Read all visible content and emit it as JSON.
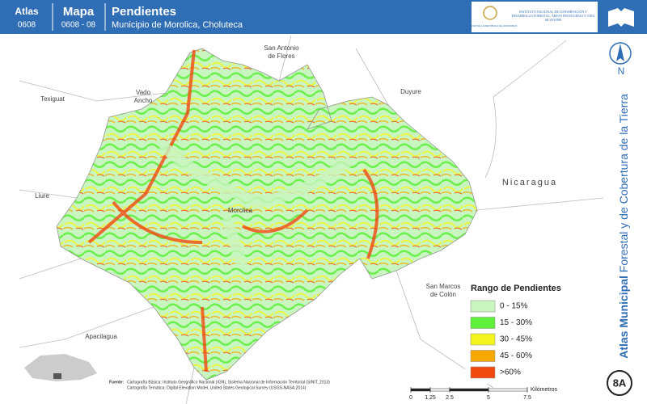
{
  "header": {
    "atlas_label": "Atlas",
    "atlas_code": "0608",
    "map_label": "Mapa",
    "map_code": "0608 - 08",
    "title": "Pendientes",
    "subtitle": "Municipio de Morolica, Choluteca"
  },
  "logos": {
    "left": "GOBIERNO DE LA REPÚBLICA DE HONDURAS",
    "right": "INSTITUTO NACIONAL DE CONSERVACIÓN Y DESARROLLO FORESTAL, ÁREAS PROTEGIDAS Y VIDA SILVESTRE"
  },
  "places": [
    {
      "lines": [
        "Texiguat"
      ]
    },
    {
      "lines": [
        "Vado",
        "Ancho"
      ]
    },
    {
      "lines": [
        "San Antonio",
        "de Flores"
      ]
    },
    {
      "lines": [
        "Duyure"
      ]
    },
    {
      "lines": [
        "Nicaragua"
      ]
    },
    {
      "lines": [
        "Liure"
      ]
    },
    {
      "lines": [
        "Morolica"
      ]
    },
    {
      "lines": [
        "San Marcos",
        "de Colón"
      ]
    },
    {
      "lines": [
        "Apacilagua"
      ]
    }
  ],
  "legend": {
    "title": "Rango de Pendientes",
    "items": [
      {
        "label": "0 - 15%",
        "color": "#c9f5c1"
      },
      {
        "label": "15 - 30%",
        "color": "#5ef03a"
      },
      {
        "label": "30 - 45%",
        "color": "#f5f51e"
      },
      {
        "label": "45 - 60%",
        "color": "#f7a800"
      },
      {
        "label": ">60%",
        "color": "#f04a10"
      }
    ]
  },
  "scale": {
    "ticks": [
      0,
      1.25,
      2.5,
      5,
      7.5
    ],
    "unit": "Kilómetros"
  },
  "source": {
    "label": "Fuente:",
    "lines": [
      "Cartografía Básica: Instituto Geográfico Nacional (IGN), Sistema Nacional de Información Territorial (SINIT, 2013)",
      "Cartografía Temática: Digital Elevation Model, United States Geological Survey (USGS-NASA,2014)"
    ]
  },
  "sidebar": {
    "north": "N",
    "bold": "Atlas Municipal",
    "rest": " Forestal y de Cobertura de la Tierra",
    "badge": "8A"
  }
}
